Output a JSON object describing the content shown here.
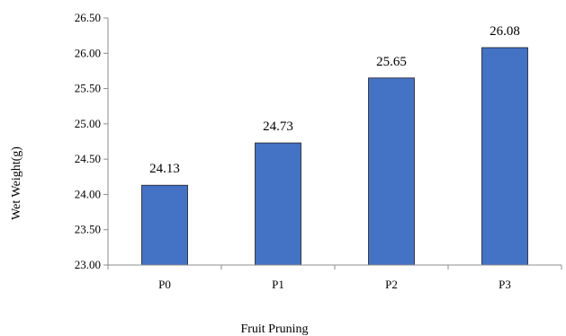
{
  "chart_data": {
    "type": "bar",
    "categories": [
      "P0",
      "P1",
      "P2",
      "P3"
    ],
    "values": [
      24.13,
      24.73,
      25.65,
      26.08
    ],
    "data_labels": [
      "24.13",
      "24.73",
      "25.65",
      "26.08"
    ],
    "title": "",
    "xlabel": "Fruit Pruning",
    "ylabel": "Wet Weight(g)",
    "ylim": [
      23.0,
      26.5
    ],
    "yticks": [
      "23.00",
      "23.50",
      "24.00",
      "24.50",
      "25.00",
      "25.50",
      "26.00",
      "26.50"
    ],
    "grid": false,
    "legend": "none",
    "colors": {
      "bar": "#4472c4",
      "bar_border": "#1f1f1f",
      "axis": "#8c8c8c"
    }
  }
}
